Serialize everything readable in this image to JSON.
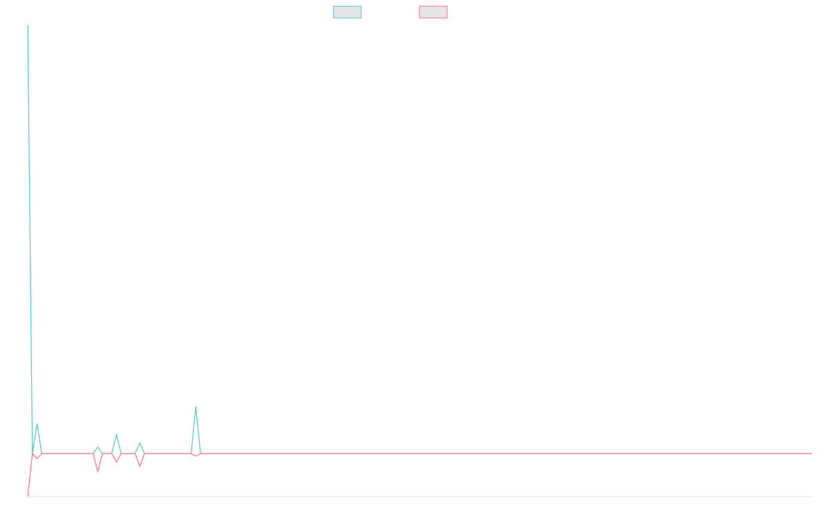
{
  "colors": {
    "series_a": "#4bc0c0",
    "series_b": "#ff6384",
    "legend_fill": "#e6e6e6",
    "axis": "#e0e0e0"
  },
  "chart_data": {
    "type": "line",
    "legend_placement": "top-center",
    "grid": false,
    "x_count": 169,
    "ylim": [
      -0.1,
      1.0
    ],
    "series": [
      {
        "values": [
          1.0,
          0.0,
          0.07,
          0.0,
          0.0,
          0.0,
          0.0,
          0.0,
          0.0,
          0.0,
          0.0,
          0.0,
          0.0,
          0.0,
          0.0,
          0.015,
          0.0,
          0.0,
          0.0,
          0.045,
          0.0,
          0.0,
          0.0,
          0.0,
          0.025,
          0.0,
          0.0,
          0.0,
          0.0,
          0.0,
          0.0,
          0.0,
          0.0,
          0.0,
          0.0,
          0.0,
          0.11,
          0.0
        ],
        "tail_value": 0.0
      },
      {
        "values": [
          -0.1,
          0.0,
          -0.012,
          0.0,
          0.0,
          0.0,
          0.0,
          0.0,
          0.0,
          0.0,
          0.0,
          0.0,
          0.0,
          0.0,
          0.0,
          -0.042,
          0.0,
          0.0,
          0.0,
          -0.02,
          0.0,
          0.0,
          0.0,
          0.0,
          -0.03,
          0.0,
          0.0,
          0.0,
          0.0,
          0.0,
          0.0,
          0.0,
          0.0,
          0.0,
          0.0,
          0.0,
          -0.006,
          0.0
        ],
        "tail_value": 0.0
      }
    ]
  }
}
